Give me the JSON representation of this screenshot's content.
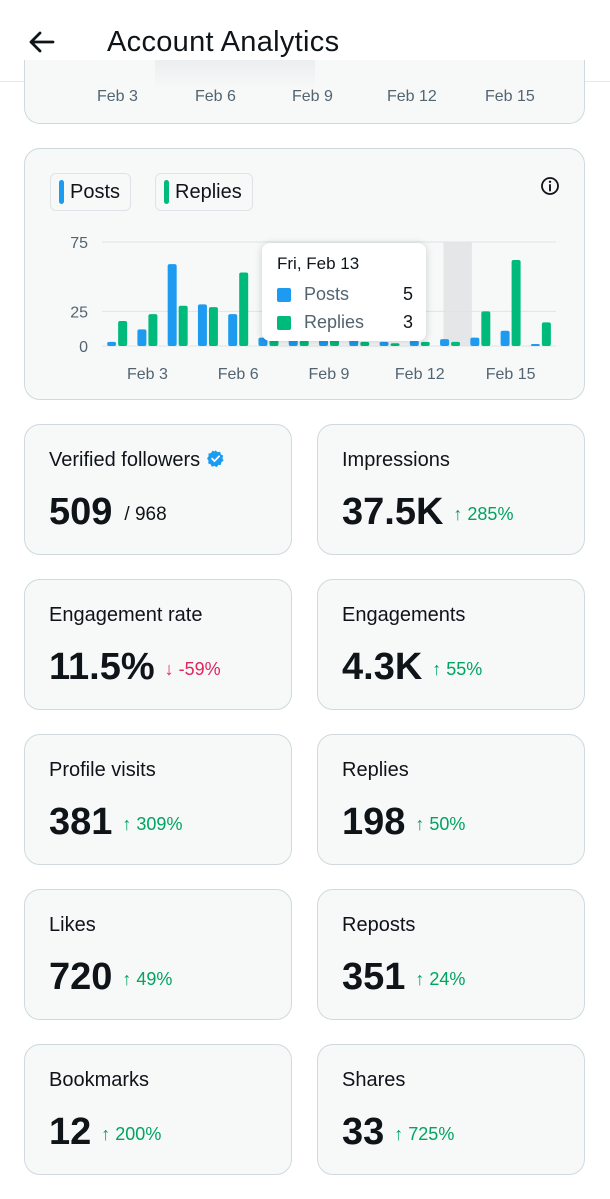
{
  "header": {
    "title": "Account Analytics",
    "back_icon": "arrow-left-icon"
  },
  "top_axis": {
    "ticks": [
      "Feb 3",
      "Feb 6",
      "Feb 9",
      "Feb 12",
      "Feb 15"
    ]
  },
  "colors": {
    "posts": "#1d9bf0",
    "replies": "#00ba7c",
    "up": "#00a361",
    "down": "#e0245e",
    "verified": "#1d9bf0"
  },
  "legend": {
    "posts_label": "Posts",
    "replies_label": "Replies",
    "info_icon": "info-icon"
  },
  "chart_data": {
    "type": "bar",
    "title": "",
    "xlabel": "",
    "ylabel": "",
    "ylim": [
      0,
      75
    ],
    "y_ticks": [
      0,
      25,
      75
    ],
    "x_tick_labels": [
      "Feb 3",
      "Feb 6",
      "Feb 9",
      "Feb 12",
      "Feb 15"
    ],
    "x_tick_indices": [
      1,
      4,
      7,
      10,
      13
    ],
    "categories": [
      "Feb 2",
      "Feb 3",
      "Feb 4",
      "Feb 5",
      "Feb 6",
      "Feb 7",
      "Feb 8",
      "Feb 9",
      "Feb 10",
      "Feb 11",
      "Feb 12",
      "Feb 13",
      "Feb 14",
      "Feb 15",
      "Feb 16"
    ],
    "highlight_index": 11,
    "series": [
      {
        "name": "Posts",
        "values": [
          3,
          12,
          59,
          30,
          23,
          6,
          5,
          5,
          5,
          3,
          4,
          5,
          6,
          11,
          1
        ]
      },
      {
        "name": "Replies",
        "values": [
          18,
          23,
          29,
          28,
          53,
          5,
          4,
          5,
          3,
          2,
          3,
          3,
          25,
          62,
          17
        ]
      }
    ]
  },
  "tooltip": {
    "date": "Fri, Feb 13",
    "posts_label": "Posts",
    "posts_value": "5",
    "replies_label": "Replies",
    "replies_value": "3"
  },
  "stats": {
    "verified_followers": {
      "label": "Verified followers",
      "value": "509",
      "sub": "/ 968",
      "icon": "verified-badge-icon"
    },
    "impressions": {
      "label": "Impressions",
      "value": "37.5K",
      "change": "↑ 285%"
    },
    "engagement_rate": {
      "label": "Engagement rate",
      "value": "11.5%",
      "change": "↓ -59%"
    },
    "engagements": {
      "label": "Engagements",
      "value": "4.3K",
      "change": "↑ 55%"
    },
    "profile_visits": {
      "label": "Profile visits",
      "value": "381",
      "change": "↑ 309%"
    },
    "replies": {
      "label": "Replies",
      "value": "198",
      "change": "↑ 50%"
    },
    "likes": {
      "label": "Likes",
      "value": "720",
      "change": "↑ 49%"
    },
    "reposts": {
      "label": "Reposts",
      "value": "351",
      "change": "↑ 24%"
    },
    "bookmarks": {
      "label": "Bookmarks",
      "value": "12",
      "change": "↑ 200%"
    },
    "shares": {
      "label": "Shares",
      "value": "33",
      "change": "↑ 725%"
    }
  }
}
